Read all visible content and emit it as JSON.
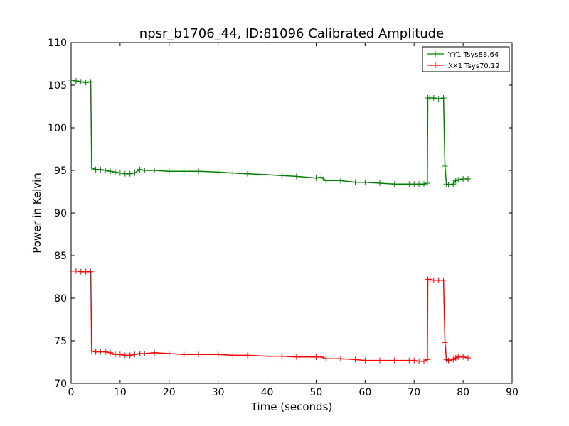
{
  "chart_data": {
    "type": "line",
    "title": "npsr_b1706_44, ID:81096 Calibrated Amplitude",
    "xlabel": "Time (seconds)",
    "ylabel": "Power in Kelvin",
    "xlim": [
      0,
      90
    ],
    "ylim": [
      70,
      110
    ],
    "xticks": [
      0,
      10,
      20,
      30,
      40,
      50,
      60,
      70,
      80,
      90
    ],
    "yticks": [
      70,
      75,
      80,
      85,
      90,
      95,
      100,
      105,
      110
    ],
    "grid": false,
    "legend_position": "top-right",
    "marker": "+",
    "series": [
      {
        "name": "YY1 Tsys88.64",
        "color": "#008000",
        "x": [
          0,
          1,
          2,
          3,
          4,
          4.2,
          5,
          6,
          7,
          8,
          9,
          10,
          11,
          12,
          13,
          14,
          15,
          17,
          20,
          23,
          26,
          30,
          33,
          36,
          40,
          43,
          46,
          50,
          51,
          52,
          55,
          58,
          60,
          63,
          66,
          69,
          70,
          71,
          72,
          72.7,
          72.8,
          73.2,
          74,
          75,
          76,
          76.3,
          76.6,
          77,
          78,
          78.5,
          79,
          80,
          81
        ],
        "y": [
          105.6,
          105.5,
          105.4,
          105.3,
          105.4,
          95.3,
          95.1,
          95.1,
          95.0,
          94.9,
          94.8,
          94.7,
          94.6,
          94.6,
          94.7,
          95.1,
          95.0,
          95.0,
          94.9,
          94.9,
          94.9,
          94.8,
          94.7,
          94.6,
          94.5,
          94.4,
          94.3,
          94.1,
          94.2,
          93.8,
          93.8,
          93.6,
          93.6,
          93.5,
          93.4,
          93.4,
          93.4,
          93.4,
          93.4,
          93.5,
          103.5,
          103.5,
          103.5,
          103.4,
          103.5,
          95.5,
          93.4,
          93.3,
          93.4,
          93.8,
          93.9,
          94.0,
          94.0
        ]
      },
      {
        "name": "XX1 Tsys70.12",
        "color": "#ff0000",
        "x": [
          0,
          1,
          2,
          3,
          4,
          4.2,
          5,
          6,
          7,
          8,
          9,
          10,
          11,
          12,
          13,
          14,
          15,
          17,
          20,
          23,
          26,
          30,
          33,
          36,
          40,
          43,
          46,
          50,
          51,
          52,
          55,
          58,
          60,
          63,
          66,
          69,
          70,
          71,
          72,
          72.7,
          72.8,
          73.2,
          74,
          75,
          76,
          76.3,
          76.6,
          77,
          78,
          78.5,
          79,
          80,
          81
        ],
        "y": [
          83.2,
          83.2,
          83.1,
          83.1,
          83.1,
          73.8,
          73.7,
          73.7,
          73.7,
          73.6,
          73.4,
          73.4,
          73.3,
          73.3,
          73.4,
          73.5,
          73.5,
          73.6,
          73.5,
          73.4,
          73.4,
          73.4,
          73.3,
          73.3,
          73.2,
          73.2,
          73.1,
          73.1,
          73.1,
          72.9,
          72.9,
          72.8,
          72.7,
          72.7,
          72.7,
          72.7,
          72.7,
          72.6,
          72.6,
          72.8,
          82.2,
          82.2,
          82.1,
          82.1,
          82.1,
          74.8,
          72.8,
          72.7,
          72.8,
          73.0,
          73.1,
          73.1,
          73.0
        ]
      }
    ]
  }
}
